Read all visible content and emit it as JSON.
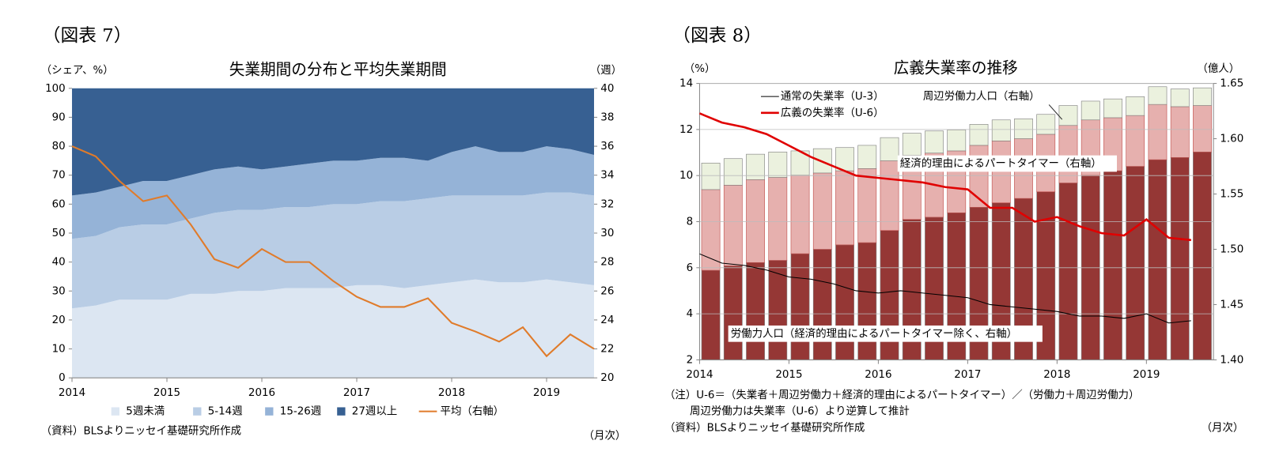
{
  "chart_data": [
    {
      "type": "area",
      "figure_label": "（図表 7）",
      "title": "失業期間の分布と平均失業期間",
      "ylabel": "（シェア、%）",
      "y2label": "（週）",
      "xlabel": "（月次）",
      "notes": [
        "（資料）BLSよりニッセイ基礎研究所作成"
      ],
      "legend": "bottom",
      "grid": false,
      "x": [
        2014,
        2014.25,
        2014.5,
        2014.75,
        2015,
        2015.25,
        2015.5,
        2015.75,
        2016,
        2016.25,
        2016.5,
        2016.75,
        2017,
        2017.25,
        2017.5,
        2017.75,
        2018,
        2018.25,
        2018.5,
        2018.75,
        2019,
        2019.25,
        2019.5
      ],
      "xlim": [
        2014,
        2019.5
      ],
      "xticks": [
        2014,
        2015,
        2016,
        2017,
        2018,
        2019
      ],
      "ylim": [
        0,
        100
      ],
      "yticks": [
        0,
        10,
        20,
        30,
        40,
        50,
        60,
        70,
        80,
        90,
        100
      ],
      "y2lim": [
        20,
        40
      ],
      "y2ticks": [
        20,
        22,
        24,
        26,
        28,
        30,
        32,
        34,
        36,
        38,
        40
      ],
      "series": [
        {
          "name": "5週未満",
          "type": "area",
          "color": "#dce6f2",
          "values": [
            24,
            25,
            27,
            27,
            27,
            29,
            29,
            30,
            30,
            31,
            31,
            31,
            32,
            32,
            31,
            32,
            33,
            34,
            33,
            33,
            34,
            33,
            32
          ]
        },
        {
          "name": "5-14週",
          "type": "area",
          "color": "#b9cde5",
          "values": [
            24,
            24,
            25,
            26,
            26,
            26,
            28,
            28,
            28,
            28,
            28,
            29,
            28,
            29,
            30,
            30,
            30,
            29,
            30,
            30,
            30,
            31,
            31
          ]
        },
        {
          "name": "15-26週",
          "type": "area",
          "color": "#95b3d7",
          "values": [
            15,
            15,
            14,
            15,
            15,
            15,
            15,
            15,
            14,
            14,
            15,
            15,
            15,
            15,
            15,
            13,
            15,
            17,
            15,
            15,
            16,
            15,
            14
          ]
        },
        {
          "name": "27週以上",
          "type": "area",
          "color": "#376092",
          "values": [
            37,
            36,
            34,
            32,
            32,
            30,
            28,
            27,
            28,
            27,
            26,
            25,
            25,
            24,
            24,
            25,
            22,
            20,
            22,
            22,
            20,
            21,
            23
          ]
        },
        {
          "name": "平均（右軸）",
          "type": "line",
          "axis": "y2",
          "color": "#e07b2a",
          "line_width": 2,
          "values": [
            36,
            35.3,
            33.6,
            32.2,
            32.6,
            30.6,
            28.2,
            27.6,
            28.9,
            28,
            28,
            26.7,
            25.6,
            24.9,
            24.9,
            25.5,
            23.8,
            23.2,
            22.5,
            23.5,
            21.5,
            23,
            22
          ]
        }
      ]
    },
    {
      "type": "bar",
      "figure_label": "（図表 8）",
      "title": "広義失業率の推移",
      "ylabel": "（%）",
      "y2label": "（億人）",
      "xlabel": "（月次）",
      "notes": [
        "（注）U-6＝（失業者＋周辺労働力＋経済的理由によるパートタイマー）／（労働力＋周辺労働力）",
        "周辺労働力は失業率（U-6）より逆算して推計",
        "（資料）BLSよりニッセイ基礎研究所作成"
      ],
      "legend": "upper left",
      "grid": true,
      "x": [
        2014,
        2014.25,
        2014.5,
        2014.75,
        2015,
        2015.25,
        2015.5,
        2015.75,
        2016,
        2016.25,
        2016.5,
        2016.75,
        2017,
        2017.25,
        2017.5,
        2017.75,
        2018,
        2018.25,
        2018.5,
        2018.75,
        2019,
        2019.25,
        2019.5
      ],
      "xlim": [
        2014,
        2019.75
      ],
      "xticks": [
        2014,
        2015,
        2016,
        2017,
        2018,
        2019
      ],
      "ylim": [
        2,
        14
      ],
      "yticks": [
        2,
        4,
        6,
        8,
        10,
        12,
        14
      ],
      "y2lim": [
        1.4,
        1.65
      ],
      "y2ticks": [
        {
          "value": 1.4,
          "label": "1.40"
        },
        1.45,
        {
          "value": 1.5,
          "label": "1.50"
        },
        1.55,
        {
          "value": 1.6,
          "label": "1.60"
        },
        1.65
      ],
      "series": [
        {
          "name": "労働力人口（経済的理由によるパートタイマー除く、右軸）",
          "type": "bar",
          "axis": "y2",
          "color": "#953735",
          "values": [
            1.481,
            1.485,
            1.488,
            1.49,
            1.496,
            1.5,
            1.504,
            1.506,
            1.517,
            1.527,
            1.529,
            1.533,
            1.538,
            1.542,
            1.546,
            1.552,
            1.56,
            1.567,
            1.571,
            1.575,
            1.581,
            1.583,
            1.588
          ]
        },
        {
          "name": "経済的理由によるパートタイマー（右軸）",
          "type": "bar",
          "axis": "y2",
          "color": "#e6b0ae",
          "values": [
            0.073,
            0.073,
            0.075,
            0.075,
            0.071,
            0.069,
            0.067,
            0.067,
            0.063,
            0.058,
            0.058,
            0.056,
            0.056,
            0.056,
            0.054,
            0.052,
            0.052,
            0.05,
            0.048,
            0.046,
            0.05,
            0.046,
            0.042
          ]
        },
        {
          "name": "周辺労働力人口（右軸）",
          "type": "bar",
          "axis": "y2",
          "color": "#ebf1de",
          "values": [
            0.024,
            0.024,
            0.023,
            0.023,
            0.022,
            0.022,
            0.021,
            0.021,
            0.021,
            0.02,
            0.02,
            0.019,
            0.019,
            0.019,
            0.018,
            0.018,
            0.018,
            0.017,
            0.017,
            0.017,
            0.016,
            0.016,
            0.016
          ]
        },
        {
          "name": "通常の失業率（U-3）",
          "type": "line",
          "color": "#000000",
          "line_width": 1,
          "values": [
            6.6,
            6.2,
            6.1,
            5.9,
            5.6,
            5.5,
            5.3,
            5,
            4.9,
            5,
            4.9,
            4.8,
            4.7,
            4.4,
            4.3,
            4.2,
            4.1,
            3.9,
            3.9,
            3.8,
            4,
            3.6,
            3.7
          ]
        },
        {
          "name": "広義の失業率（U-6）",
          "type": "line",
          "color": "#e00000",
          "line_width": 2.5,
          "values": [
            12.7,
            12.3,
            12.1,
            11.8,
            11.3,
            10.8,
            10.4,
            10,
            9.9,
            9.8,
            9.7,
            9.5,
            9.4,
            8.6,
            8.6,
            8,
            8.2,
            7.8,
            7.5,
            7.4,
            8.1,
            7.3,
            7.2
          ]
        }
      ]
    }
  ]
}
